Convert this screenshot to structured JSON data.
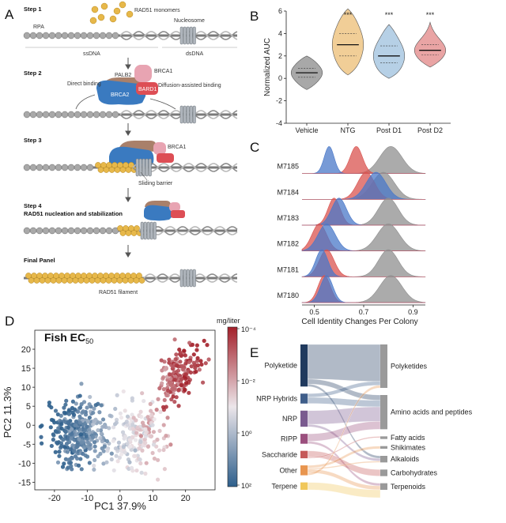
{
  "panel_a": {
    "label": "A",
    "step1": {
      "title": "Step 1",
      "rpa": "RPA",
      "monomers": "RAD51 monomers",
      "nucleosome": "Nucleosome",
      "ssdna": "ssDNA",
      "dsdna": "dsDNA"
    },
    "step2": {
      "title": "Step 2",
      "palb2": "PALB2",
      "brca1": "BRCA1",
      "brca2": "BRCA2",
      "bard1": "BARD1",
      "direct": "Direct binding",
      "diffusion": "Diffusion-assisted binding"
    },
    "step3": {
      "title": "Step 3",
      "brca1": "BRCA1",
      "barrier": "Sliding barrier"
    },
    "step4": {
      "title": "Step 4",
      "subtitle": "RAD51 nucleation and stabilization"
    },
    "final": {
      "title": "Final Panel",
      "filament": "RAD51 filament"
    },
    "colors": {
      "brca2": "#3a7ac0",
      "palb2": "#a9806a",
      "brca1": "#e8a4b2",
      "bard1": "#dd4e55",
      "rad51": "#e7b84a",
      "dna": "#8c8c8c"
    }
  },
  "panel_b": {
    "label": "B",
    "chart_data": {
      "type": "violin",
      "categories": [
        "Vehicle",
        "NTG",
        "Post D1",
        "Post D2"
      ],
      "medians": [
        0.5,
        3.0,
        2.0,
        2.5
      ],
      "q1": [
        0.1,
        2.0,
        1.4,
        2.1
      ],
      "q3": [
        0.9,
        4.0,
        2.9,
        3.0
      ],
      "mins": [
        -1.0,
        0.3,
        0.0,
        1.0
      ],
      "maxs": [
        2.0,
        6.2,
        4.8,
        5.0
      ],
      "significance": [
        "",
        "***",
        "***",
        "***"
      ],
      "ylabel": "Normalized AUC",
      "ylim": [
        -4,
        6
      ],
      "yticks": [
        -4,
        -2,
        0,
        2,
        4,
        6
      ],
      "colors": [
        "#9e9e9e",
        "#f0c98c",
        "#aecbe3",
        "#e79a9a"
      ]
    }
  },
  "panel_c": {
    "label": "C",
    "chart_data": {
      "type": "ridgeline",
      "rows": [
        "M7185",
        "M7184",
        "M7183",
        "M7182",
        "M7181",
        "M7180"
      ],
      "series": [
        {
          "name": "",
          "color": "#4a78c8",
          "peaks": [
            0.56,
            0.75,
            0.6,
            0.55,
            0.53,
            0.55
          ],
          "widths": [
            0.02,
            0.04,
            0.03,
            0.035,
            0.025,
            0.025
          ]
        },
        {
          "name": "",
          "color": "#d9534f",
          "peaks": [
            0.67,
            0.71,
            0.58,
            0.52,
            0.55,
            0.54
          ],
          "widths": [
            0.025,
            0.035,
            0.025,
            0.03,
            0.03,
            0.025
          ]
        },
        {
          "name": "",
          "color": "#8f8f8f",
          "peaks": [
            0.81,
            0.78,
            0.8,
            0.8,
            0.8,
            0.81
          ],
          "widths": [
            0.045,
            0.045,
            0.04,
            0.045,
            0.04,
            0.045
          ]
        }
      ],
      "xlabel": "Cell Identity Changes Per Colony",
      "xlim": [
        0.45,
        0.95
      ],
      "xticks": [
        0.5,
        0.7,
        0.9
      ]
    }
  },
  "panel_d": {
    "label": "D",
    "chart_data": {
      "type": "scatter",
      "title": "Fish EC",
      "title_sub": "50",
      "xlabel": "PC1 37.9%",
      "ylabel": "PC2 11.3%",
      "xlim": [
        -26,
        29
      ],
      "ylim": [
        -17,
        25
      ],
      "xticks": [
        -20,
        -10,
        0,
        10,
        20
      ],
      "yticks": [
        -15,
        -10,
        -5,
        0,
        5,
        10,
        15,
        20
      ],
      "colorbar_label": "mg/liter",
      "colorbar_ticks": [
        "10⁻⁴",
        "10⁻²",
        "10⁰",
        "10²"
      ],
      "clusters": [
        {
          "cx": -13,
          "cy": -2,
          "sx": 6.5,
          "sy": 6,
          "n": 330,
          "val": 0.12
        },
        {
          "cx": 5,
          "cy": -3,
          "sx": 6,
          "sy": 6,
          "n": 200,
          "val": 0.5
        },
        {
          "cx": 18,
          "cy": 13,
          "sx": 4.5,
          "sy": 6,
          "n": 170,
          "val": 0.88
        }
      ],
      "color_low": "#2e5f8c",
      "color_mid": "#ece6ea",
      "color_high": "#a3202a"
    }
  },
  "panel_e": {
    "label": "E",
    "chart_data": {
      "type": "sankey",
      "left": [
        {
          "name": "Polyketide",
          "share": 0.34,
          "color": "#203a5e"
        },
        {
          "name": "NRP Hybrids",
          "share": 0.08,
          "color": "#3f5e8a"
        },
        {
          "name": "NRP",
          "share": 0.13,
          "color": "#7a5a8f"
        },
        {
          "name": "RIPP",
          "share": 0.08,
          "color": "#9b4f7e"
        },
        {
          "name": "Saccharide",
          "share": 0.06,
          "color": "#c55a5a"
        },
        {
          "name": "Other",
          "share": 0.08,
          "color": "#e8954f"
        },
        {
          "name": "Terpene",
          "share": 0.06,
          "color": "#f0c75a"
        }
      ],
      "right": [
        {
          "name": "Polyketides",
          "share": 0.33
        },
        {
          "name": "Amino acids and peptides",
          "share": 0.26
        },
        {
          "name": "Fatty acids",
          "share": 0.02
        },
        {
          "name": "Shikimates",
          "share": 0.02
        },
        {
          "name": "Alkaloids",
          "share": 0.05
        },
        {
          "name": "Carbohydrates",
          "share": 0.05
        },
        {
          "name": "Terpenoids",
          "share": 0.05
        }
      ],
      "flows": [
        [
          0,
          0,
          0.28
        ],
        [
          0,
          1,
          0.04
        ],
        [
          0,
          4,
          0.02
        ],
        [
          1,
          0,
          0.03
        ],
        [
          1,
          1,
          0.05
        ],
        [
          2,
          1,
          0.11
        ],
        [
          2,
          4,
          0.02
        ],
        [
          3,
          1,
          0.06
        ],
        [
          3,
          6,
          0.02
        ],
        [
          4,
          5,
          0.05
        ],
        [
          4,
          2,
          0.01
        ],
        [
          5,
          3,
          0.02
        ],
        [
          5,
          4,
          0.01
        ],
        [
          5,
          6,
          0.03
        ],
        [
          5,
          0,
          0.02
        ],
        [
          6,
          6,
          0.06
        ]
      ]
    }
  }
}
